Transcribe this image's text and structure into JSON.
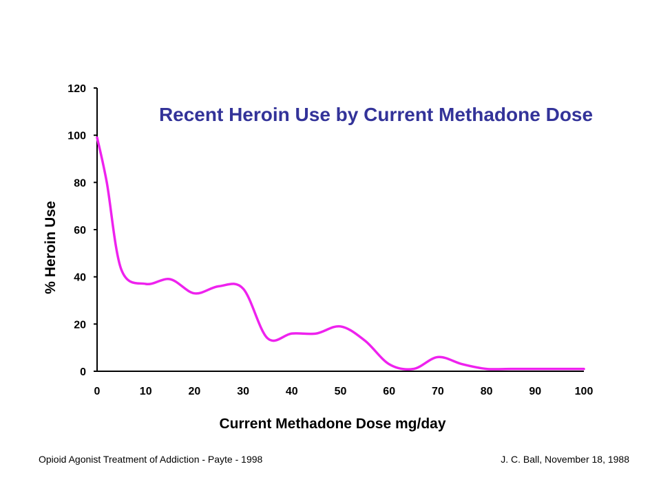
{
  "colors": {
    "line": "#ee22ee",
    "title": "#333399",
    "axis": "#000000"
  },
  "chart_data": {
    "type": "line",
    "title": "Recent Heroin Use by Current Methadone Dose",
    "xlabel": "Current Methadone Dose mg/day",
    "ylabel": "% Heroin Use",
    "xlim": [
      0,
      100
    ],
    "ylim": [
      0,
      120
    ],
    "x_ticks": [
      0,
      10,
      20,
      30,
      40,
      50,
      60,
      70,
      80,
      90,
      100
    ],
    "y_ticks": [
      0,
      20,
      40,
      60,
      80,
      100,
      120
    ],
    "series": [
      {
        "x": [
          0,
          2,
          5,
          10,
          15,
          20,
          25,
          30,
          35,
          40,
          45,
          50,
          55,
          60,
          65,
          70,
          75,
          80,
          85,
          90,
          95,
          100
        ],
        "y": [
          99,
          80,
          43,
          37,
          39,
          33,
          36,
          35,
          14,
          16,
          16,
          19,
          13,
          3,
          1,
          6,
          3,
          1,
          1,
          1,
          1,
          1
        ]
      }
    ]
  },
  "footer": {
    "left": "Opioid Agonist Treatment of Addiction  -  Payte - 1998",
    "right": "J. C. Ball, November 18, 1988"
  }
}
